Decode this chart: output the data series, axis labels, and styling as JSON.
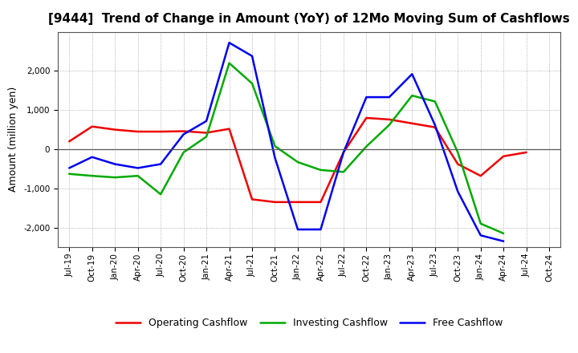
{
  "title": "[9444]  Trend of Change in Amount (YoY) of 12Mo Moving Sum of Cashflows",
  "ylabel": "Amount (million yen)",
  "x_labels": [
    "Jul-19",
    "Oct-19",
    "Jan-20",
    "Apr-20",
    "Jul-20",
    "Oct-20",
    "Jan-21",
    "Apr-21",
    "Jul-21",
    "Oct-21",
    "Jan-22",
    "Apr-22",
    "Jul-22",
    "Oct-22",
    "Jan-23",
    "Apr-23",
    "Jul-23",
    "Oct-23",
    "Jan-24",
    "Apr-24",
    "Jul-24",
    "Oct-24"
  ],
  "operating_cashflow": [
    200,
    580,
    500,
    450,
    450,
    460,
    420,
    520,
    -1280,
    -1350,
    -1350,
    -1350,
    -80,
    800,
    760,
    660,
    560,
    -380,
    -680,
    -180,
    -80,
    null
  ],
  "investing_cashflow": [
    -630,
    -680,
    -720,
    -680,
    -1150,
    -80,
    320,
    2200,
    1680,
    80,
    -330,
    -530,
    -580,
    70,
    620,
    1370,
    1220,
    -80,
    -1900,
    -2150,
    null,
    null
  ],
  "free_cashflow": [
    -480,
    -200,
    -380,
    -480,
    -380,
    380,
    720,
    2720,
    2380,
    -220,
    -2050,
    -2050,
    -80,
    1330,
    1330,
    1920,
    620,
    -1080,
    -2200,
    -2350,
    null,
    null
  ],
  "ylim": [
    -2500,
    3000
  ],
  "yticks": [
    -2000,
    -1000,
    0,
    1000,
    2000
  ],
  "operating_color": "#EE0000",
  "investing_color": "#00AA00",
  "free_color": "#0000EE",
  "bg_color": "#FFFFFF",
  "plot_bg_color": "#FFFFFF",
  "grid_color": "#888888",
  "zero_line_color": "#555555",
  "line_width": 1.8,
  "title_fontsize": 11,
  "legend_fontsize": 9,
  "tick_fontsize": 7.5,
  "ylabel_fontsize": 9
}
